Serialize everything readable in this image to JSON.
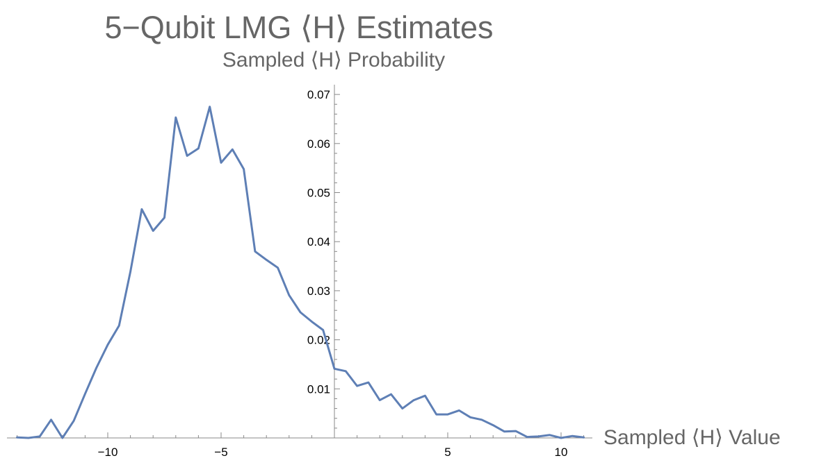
{
  "chart_data": {
    "type": "line",
    "title": "5−Qubit LMG ⟨H⟩ Estimates",
    "subtitle": "Sampled ⟨H⟩ Probability",
    "xlabel": "Sampled ⟨H⟩ Value",
    "ylabel": "",
    "xlim": [
      -14.5,
      11.5
    ],
    "ylim": [
      0,
      0.072
    ],
    "xticks": [
      -10,
      -5,
      5,
      10
    ],
    "xtick_labels": [
      "−10",
      "−5",
      "5",
      "10"
    ],
    "yticks": [
      0.01,
      0.02,
      0.03,
      0.04,
      0.05,
      0.06,
      0.07
    ],
    "ytick_labels": [
      "0.01",
      "0.02",
      "0.03",
      "0.04",
      "0.05",
      "0.06",
      "0.07"
    ],
    "grid": false,
    "colors": {
      "line": "#5e7fb5",
      "title": "#666666",
      "axis": "#888888"
    },
    "series": [
      {
        "x": [
          -14,
          -13.5,
          -13,
          -12.5,
          -12,
          -11.5,
          -11,
          -10.5,
          -10,
          -9.5,
          -9,
          -8.5,
          -8,
          -7.5,
          -7,
          -6.5,
          -6,
          -5.5,
          -5,
          -4.5,
          -4,
          -3.5,
          -3,
          -2.5,
          -2,
          -1.5,
          -1,
          -0.5,
          0,
          0.5,
          1,
          1.5,
          2,
          2.5,
          3,
          3.5,
          4,
          4.5,
          5,
          5.5,
          6,
          6.5,
          7,
          7.5,
          8,
          8.5,
          9,
          9.5,
          10,
          10.5,
          11
        ],
        "values": [
          0.0001,
          0.0,
          0.0003,
          0.0037,
          0.0,
          0.0035,
          0.009,
          0.0143,
          0.019,
          0.0229,
          0.0339,
          0.0466,
          0.0422,
          0.0449,
          0.0653,
          0.0575,
          0.059,
          0.0675,
          0.0561,
          0.0588,
          0.0548,
          0.038,
          0.0363,
          0.0347,
          0.0291,
          0.0256,
          0.0237,
          0.022,
          0.0141,
          0.0136,
          0.0106,
          0.0113,
          0.0077,
          0.0089,
          0.006,
          0.0077,
          0.0086,
          0.0048,
          0.0048,
          0.0056,
          0.0042,
          0.0037,
          0.0026,
          0.0013,
          0.0014,
          0.0002,
          0.0003,
          0.0006,
          0.0,
          0.0004,
          0.0001
        ]
      }
    ]
  }
}
